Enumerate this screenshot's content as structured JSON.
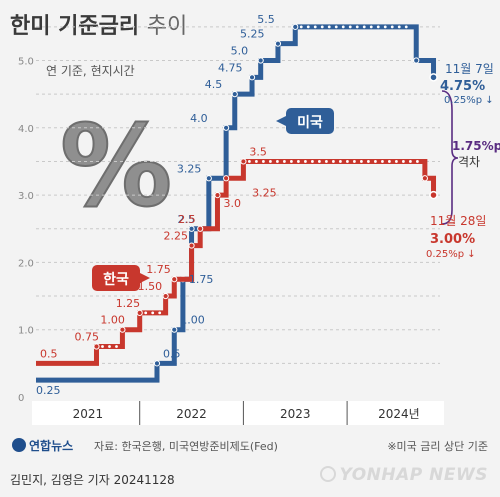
{
  "title": {
    "main": "한미 기준금리",
    "sub": "추이"
  },
  "subtitle": "연 기준, 현지시간",
  "percent_symbol": "%",
  "colors": {
    "us": "#2f5e98",
    "kr": "#c8372d",
    "grid": "#c9c9c9",
    "gap": "#5a2d82"
  },
  "chart_data": {
    "type": "line",
    "step": true,
    "xlabel": "",
    "ylabel": "",
    "ylim": [
      0,
      5.5
    ],
    "yticks": [
      "0",
      "1.0",
      "2.0",
      "3.0",
      "4.0",
      "5.0"
    ],
    "xticks": [
      "2021",
      "2022",
      "2023",
      "2024년"
    ],
    "grid": true,
    "series": [
      {
        "name": "미국",
        "color": "#2f5e98",
        "points": [
          [
            "2021-01",
            0.25
          ],
          [
            "2022-03",
            0.5
          ],
          [
            "2022-05",
            1.0
          ],
          [
            "2022-06",
            1.75
          ],
          [
            "2022-07",
            2.5
          ],
          [
            "2022-09",
            3.25
          ],
          [
            "2022-11",
            4.0
          ],
          [
            "2022-12",
            4.5
          ],
          [
            "2023-02",
            4.75
          ],
          [
            "2023-03",
            5.0
          ],
          [
            "2023-05",
            5.25
          ],
          [
            "2023-07",
            5.5
          ],
          [
            "2024-09",
            5.0
          ],
          [
            "2024-11",
            4.75
          ]
        ],
        "labels": [
          "0.25",
          "0.5",
          "1.00",
          "1.75",
          "2.5",
          "3.25",
          "4.0",
          "4.5",
          "4.75",
          "5.0",
          "5.25",
          "5.5"
        ]
      },
      {
        "name": "한국",
        "color": "#c8372d",
        "points": [
          [
            "2021-01",
            0.5
          ],
          [
            "2021-08",
            0.75
          ],
          [
            "2021-11",
            1.0
          ],
          [
            "2022-01",
            1.25
          ],
          [
            "2022-04",
            1.5
          ],
          [
            "2022-05",
            1.75
          ],
          [
            "2022-07",
            2.25
          ],
          [
            "2022-08",
            2.5
          ],
          [
            "2022-10",
            3.0
          ],
          [
            "2022-11",
            3.25
          ],
          [
            "2023-01",
            3.5
          ],
          [
            "2024-10",
            3.25
          ],
          [
            "2024-11",
            3.0
          ]
        ],
        "labels": [
          "0.5",
          "0.75",
          "1.00",
          "1.25",
          "1.50",
          "1.75",
          "2.25",
          "2.5",
          "3.0",
          "3.25",
          "3.5"
        ]
      }
    ],
    "annotations": {
      "us_date": "11월 7일",
      "us_value": "4.75%",
      "us_change": "0.25%p ↓",
      "kr_date": "11월 28일",
      "kr_value": "3.00%",
      "kr_change": "0.25%p ↓",
      "gap_value": "1.75%p",
      "gap_label": "격차"
    }
  },
  "footer": {
    "logo": "연합뉴스",
    "source": "자료: 한국은행, 미국연방준비제도(Fed)",
    "note": "※미국 금리 상단 기준"
  },
  "byline": "김민지, 김영은 기자  20241128",
  "watermark": "YONHAP NEWS"
}
